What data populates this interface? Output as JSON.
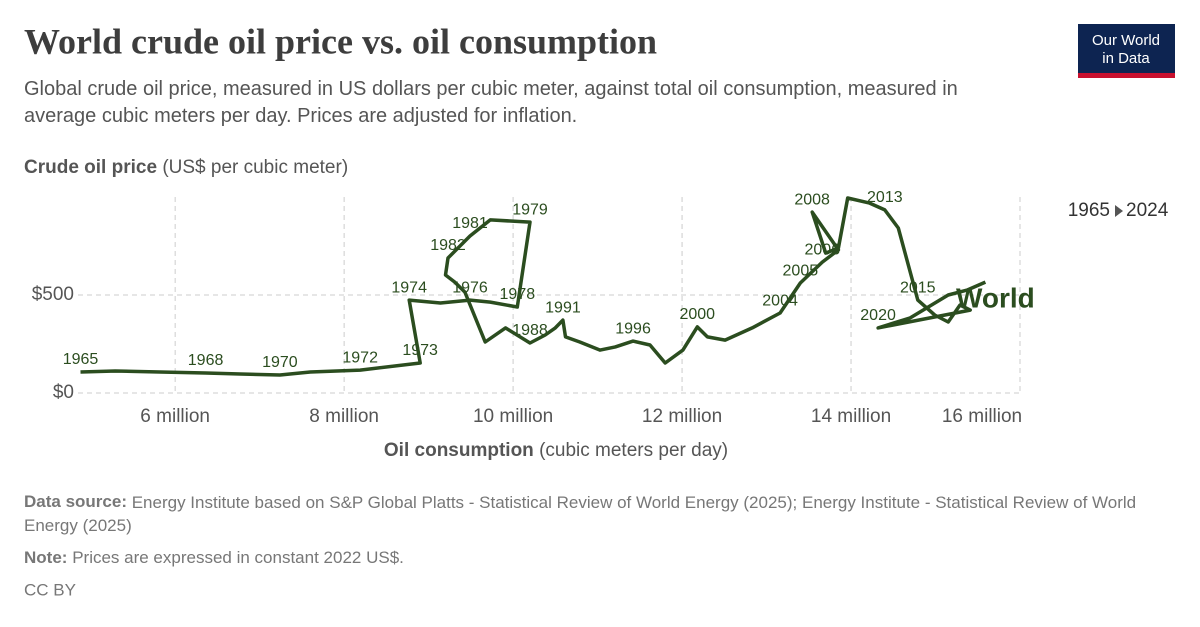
{
  "chart_data": {
    "type": "connected-scatter",
    "title": "World crude oil price vs. oil consumption",
    "subtitle": "Global crude oil price, measured in US dollars per cubic meter, against total oil consumption, measured in average cubic meters per day. Prices are adjusted for inflation.",
    "y_label": {
      "bold": "Crude oil price",
      "rest": "(US$ per cubic meter)"
    },
    "x_label": {
      "bold": "Oil consumption",
      "rest": "(cubic meters per day)"
    },
    "xlim": [
      4850000,
      16000000
    ],
    "ylim": [
      0,
      1000
    ],
    "xticks": [
      {
        "value": 6000000,
        "label": "6 million"
      },
      {
        "value": 8000000,
        "label": "8 million"
      },
      {
        "value": 10000000,
        "label": "10 million"
      },
      {
        "value": 12000000,
        "label": "12 million"
      },
      {
        "value": 14000000,
        "label": "14 million"
      },
      {
        "value": 16000000,
        "label": "16 million"
      }
    ],
    "yticks": [
      {
        "value": 0,
        "label": "$0"
      },
      {
        "value": 500,
        "label": "$500"
      }
    ],
    "grid": true,
    "time_range": {
      "start": "1965",
      "end": "2024"
    },
    "series": [
      {
        "name": "World",
        "color": "#2b4d1f",
        "x": [
          4880000,
          5290000,
          5820000,
          6360000,
          6770000,
          7240000,
          7600000,
          8190000,
          8900000,
          8770000,
          9140000,
          9490000,
          9730000,
          10050000,
          10200000,
          9730000,
          9490000,
          9230000,
          9200000,
          9310000,
          9430000,
          9670000,
          9910000,
          10200000,
          10380000,
          10500000,
          10590000,
          10620000,
          10790000,
          11030000,
          11210000,
          11420000,
          11620000,
          11800000,
          12010000,
          12180000,
          12300000,
          12510000,
          12830000,
          13160000,
          13400000,
          13660000,
          13850000,
          13540000,
          13700000,
          13850000,
          13960000,
          14220000,
          14400000,
          14560000,
          14790000,
          14990000,
          15150000,
          15290000,
          15410000,
          14320000,
          14700000,
          15150000,
          15380000,
          15590000
        ],
        "values": [
          107,
          112,
          107,
          102,
          97,
          92,
          107,
          117,
          153,
          474,
          459,
          474,
          464,
          439,
          872,
          883,
          801,
          689,
          602,
          566,
          515,
          260,
          332,
          255,
          296,
          332,
          372,
          286,
          260,
          219,
          235,
          265,
          245,
          153,
          219,
          337,
          286,
          270,
          332,
          408,
          561,
          668,
          730,
          923,
          714,
          740,
          995,
          969,
          934,
          842,
          474,
          398,
          362,
          449,
          423,
          332,
          383,
          500,
          526,
          566
        ],
        "point_labels": [
          1965,
          null,
          null,
          1968,
          null,
          1970,
          null,
          1972,
          1973,
          1974,
          null,
          1976,
          null,
          1978,
          1979,
          null,
          1981,
          1982,
          null,
          null,
          null,
          null,
          null,
          1988,
          null,
          null,
          1991,
          null,
          null,
          null,
          null,
          1996,
          null,
          null,
          null,
          2000,
          null,
          null,
          null,
          2004,
          2005,
          2006,
          null,
          2008,
          null,
          null,
          null,
          null,
          2013,
          null,
          2015,
          null,
          null,
          null,
          null,
          2020,
          null,
          null,
          null,
          null
        ]
      }
    ],
    "source": {
      "bold": "Data source:",
      "rest": "Energy Institute based on S&P Global Platts - Statistical Review of World Energy (2025); Energy Institute - Statistical Review of World Energy (2025)"
    },
    "note": {
      "bold": "Note:",
      "rest": "Prices are expressed in constant 2022 US$."
    },
    "license": "CC BY",
    "logo": [
      "Our World",
      "in Data"
    ]
  }
}
